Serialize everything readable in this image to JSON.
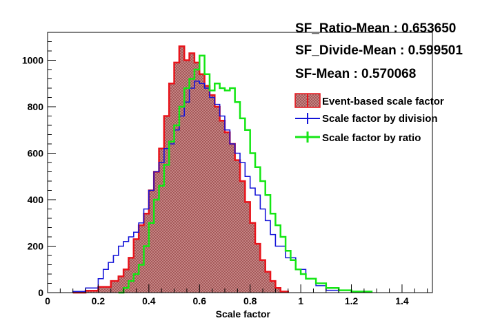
{
  "stats": {
    "ratio_mean": "SF_Ratio-Mean : 0.653650",
    "divide_mean": "SF_Divide-Mean : 0.599501",
    "sf_mean": "SF-Mean : 0.570068"
  },
  "chart_data": {
    "type": "histogram",
    "title": "",
    "xlabel": "Scale factor",
    "ylabel": "",
    "xlim": [
      0,
      1.52
    ],
    "ylim": [
      0,
      1120
    ],
    "x_ticks": [
      0,
      0.2,
      0.4,
      0.6,
      0.8,
      1,
      1.2,
      1.4
    ],
    "x_tick_labels": [
      "0",
      "0.2",
      "0.4",
      "0.6",
      "0.8",
      "1",
      "1.2",
      "1.4"
    ],
    "y_ticks": [
      0,
      200,
      400,
      600,
      800,
      1000
    ],
    "y_tick_labels": [
      "0",
      "200",
      "400",
      "600",
      "800",
      "1000"
    ],
    "legend_position": "right",
    "series": [
      {
        "name": "Event-based scale factor",
        "color": "#e8141b",
        "fill": "#b86b6b",
        "style": "filled-hatched",
        "x": [
          0.1,
          0.15,
          0.2,
          0.25,
          0.28,
          0.3,
          0.32,
          0.34,
          0.36,
          0.38,
          0.4,
          0.42,
          0.44,
          0.46,
          0.48,
          0.5,
          0.52,
          0.54,
          0.56,
          0.58,
          0.6,
          0.62,
          0.64,
          0.66,
          0.68,
          0.7,
          0.72,
          0.74,
          0.76,
          0.78,
          0.8,
          0.82,
          0.84,
          0.86,
          0.88,
          0.9,
          0.92,
          0.95
        ],
        "values": [
          0,
          8,
          25,
          50,
          70,
          100,
          150,
          230,
          290,
          340,
          440,
          520,
          620,
          760,
          900,
          990,
          1060,
          1000,
          1030,
          990,
          940,
          890,
          850,
          800,
          740,
          690,
          640,
          570,
          480,
          390,
          300,
          210,
          140,
          90,
          50,
          20,
          5,
          0
        ]
      },
      {
        "name": "Scale factor by division",
        "color": "#1414d8",
        "style": "line",
        "x": [
          0.1,
          0.15,
          0.2,
          0.22,
          0.24,
          0.26,
          0.28,
          0.3,
          0.32,
          0.34,
          0.36,
          0.38,
          0.4,
          0.42,
          0.44,
          0.46,
          0.48,
          0.5,
          0.52,
          0.54,
          0.56,
          0.58,
          0.6,
          0.62,
          0.64,
          0.66,
          0.68,
          0.7,
          0.72,
          0.74,
          0.76,
          0.78,
          0.8,
          0.82,
          0.84,
          0.86,
          0.88,
          0.9,
          0.94,
          0.98,
          1.02,
          1.06,
          1.1,
          1.15
        ],
        "values": [
          5,
          20,
          60,
          100,
          130,
          160,
          200,
          220,
          240,
          260,
          300,
          360,
          440,
          520,
          560,
          620,
          640,
          700,
          760,
          820,
          880,
          910,
          900,
          880,
          840,
          810,
          760,
          700,
          640,
          600,
          560,
          500,
          450,
          420,
          360,
          310,
          250,
          200,
          150,
          100,
          60,
          30,
          10,
          0
        ]
      },
      {
        "name": "Scale factor by ratio",
        "color": "#14e614",
        "style": "line",
        "x": [
          0.28,
          0.3,
          0.32,
          0.34,
          0.36,
          0.38,
          0.4,
          0.42,
          0.44,
          0.46,
          0.48,
          0.5,
          0.52,
          0.54,
          0.56,
          0.58,
          0.6,
          0.62,
          0.64,
          0.66,
          0.68,
          0.7,
          0.72,
          0.74,
          0.76,
          0.78,
          0.8,
          0.82,
          0.84,
          0.86,
          0.88,
          0.9,
          0.92,
          0.94,
          0.96,
          0.98,
          1.0,
          1.02,
          1.06,
          1.1,
          1.15,
          1.2,
          1.28
        ],
        "values": [
          0,
          20,
          50,
          80,
          120,
          200,
          300,
          400,
          460,
          550,
          650,
          720,
          800,
          880,
          920,
          960,
          1020,
          940,
          870,
          900,
          880,
          870,
          880,
          820,
          750,
          700,
          600,
          540,
          480,
          420,
          340,
          290,
          240,
          180,
          140,
          100,
          80,
          60,
          40,
          20,
          10,
          5,
          0
        ]
      }
    ]
  }
}
